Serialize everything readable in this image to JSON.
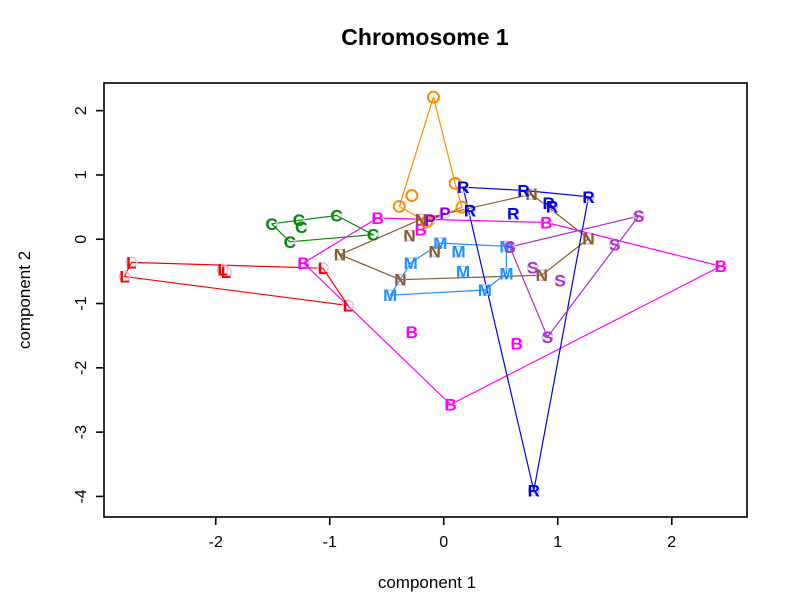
{
  "window": {
    "background": "#FFFFFF"
  },
  "chart_data": {
    "type": "scatter",
    "title": "Chromosome 1",
    "xlabel": "component 1",
    "ylabel": "component 2",
    "xlim": [
      -2.98,
      2.66
    ],
    "ylim": [
      -4.32,
      2.43
    ],
    "xticks": [
      -2,
      -1,
      0,
      1,
      2
    ],
    "yticks": [
      2,
      1,
      0,
      -1,
      -2,
      -3,
      -4
    ],
    "grid": false,
    "legend": "none",
    "halo_color": "#C8C8F0",
    "axis_color": "#000000",
    "series": [
      {
        "name": "L",
        "label": "L",
        "color": "#FF0000",
        "marker": "letter",
        "points": [
          [
            -2.74,
            -0.36
          ],
          [
            -2.8,
            -0.58
          ],
          [
            -1.94,
            -0.47
          ],
          [
            -1.91,
            -0.51
          ],
          [
            -1.06,
            -0.45
          ],
          [
            -0.84,
            -1.03
          ]
        ],
        "hull": [
          0,
          4,
          5,
          1,
          0
        ]
      },
      {
        "name": "C",
        "label": "C",
        "color": "#008B00",
        "marker": "letter",
        "points": [
          [
            -1.51,
            0.24
          ],
          [
            -1.27,
            0.3
          ],
          [
            -1.25,
            0.19
          ],
          [
            -0.94,
            0.37
          ],
          [
            -1.35,
            -0.04
          ],
          [
            -0.62,
            0.07
          ]
        ],
        "hull": [
          0,
          3,
          5,
          4,
          0
        ]
      },
      {
        "name": "B",
        "label": "B",
        "color": "#FF00FF",
        "marker": "letter",
        "points": [
          [
            -1.23,
            -0.37
          ],
          [
            -0.58,
            0.33
          ],
          [
            -0.2,
            0.15
          ],
          [
            -0.28,
            -1.44
          ],
          [
            0.06,
            -2.57
          ],
          [
            0.64,
            -1.62
          ],
          [
            0.9,
            0.26
          ],
          [
            2.43,
            -0.42
          ]
        ],
        "hull": [
          0,
          1,
          6,
          7,
          4,
          0
        ]
      },
      {
        "name": "O",
        "label": "O",
        "color": "#FF8C00",
        "marker": "circle",
        "points": [
          [
            -0.09,
            2.21
          ],
          [
            -0.28,
            0.68
          ],
          [
            -0.39,
            0.51
          ],
          [
            0.1,
            0.87
          ],
          [
            0.16,
            0.5
          ],
          [
            -0.15,
            0.27
          ]
        ],
        "hull": [
          0,
          3,
          4,
          5,
          2,
          0
        ]
      },
      {
        "name": "P",
        "label": "P",
        "color": "#9400D3",
        "marker": "letter",
        "points": [
          [
            0.01,
            0.41
          ],
          [
            -0.12,
            0.3
          ]
        ],
        "hull": [
          0,
          1
        ]
      },
      {
        "name": "N",
        "label": "N",
        "color": "#8B5A2B",
        "marker": "letter",
        "points": [
          [
            -0.91,
            -0.24
          ],
          [
            -0.3,
            0.06
          ],
          [
            -0.2,
            0.31
          ],
          [
            -0.08,
            -0.19
          ],
          [
            -0.38,
            -0.63
          ],
          [
            0.77,
            0.7
          ],
          [
            1.27,
            0.01
          ],
          [
            0.86,
            -0.56
          ]
        ],
        "hull": [
          0,
          2,
          5,
          6,
          7,
          4,
          0
        ]
      },
      {
        "name": "M",
        "label": "M",
        "color": "#1E90FF",
        "marker": "letter",
        "points": [
          [
            -0.03,
            -0.06
          ],
          [
            0.13,
            -0.19
          ],
          [
            -0.29,
            -0.37
          ],
          [
            -0.47,
            -0.87
          ],
          [
            0.17,
            -0.5
          ],
          [
            0.36,
            -0.79
          ],
          [
            0.55,
            -0.53
          ],
          [
            0.55,
            -0.11
          ]
        ],
        "hull": [
          3,
          2,
          0,
          7,
          6,
          5,
          3
        ]
      },
      {
        "name": "R",
        "label": "R",
        "color": "#0000EE",
        "marker": "letter",
        "points": [
          [
            0.17,
            0.81
          ],
          [
            0.23,
            0.45
          ],
          [
            0.7,
            0.76
          ],
          [
            0.61,
            0.4
          ],
          [
            0.92,
            0.56
          ],
          [
            0.95,
            0.51
          ],
          [
            1.27,
            0.66
          ],
          [
            0.79,
            -3.91
          ]
        ],
        "hull": [
          0,
          2,
          6,
          7,
          0
        ]
      },
      {
        "name": "S",
        "label": "S",
        "color": "#B42BD4",
        "marker": "letter",
        "points": [
          [
            0.58,
            -0.12
          ],
          [
            0.78,
            -0.44
          ],
          [
            1.02,
            -0.64
          ],
          [
            1.71,
            0.36
          ],
          [
            1.5,
            -0.08
          ],
          [
            0.91,
            -1.52
          ]
        ],
        "hull": [
          0,
          3,
          5,
          0
        ]
      }
    ]
  }
}
